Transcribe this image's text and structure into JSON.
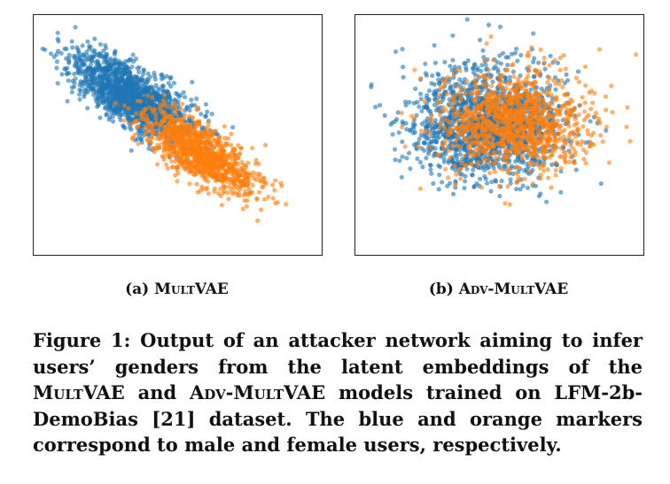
{
  "figure": {
    "subcaptions": [
      {
        "label": "(a)",
        "model": "MultVAE"
      },
      {
        "label": "(b)",
        "model": "Adv-MultVAE"
      }
    ],
    "caption": {
      "prefix": "Figure 1: Output of an attacker network aiming to infer users’ genders from the latent embeddings of the",
      "model_a": "MultVAE",
      "and": "and",
      "model_b": "Adv-MultVAE",
      "suffix": "models trained on LFM-2b-DemoBias [21] dataset. The blue and orange markers correspond to male and female users, respectively."
    }
  },
  "chart_data": [
    {
      "type": "scatter",
      "title": "(a) MultVAE",
      "xlabel": "",
      "ylabel": "",
      "axes_ticks": false,
      "xlim": [
        -4,
        4
      ],
      "ylim": [
        -4,
        4
      ],
      "series": [
        {
          "name": "male",
          "color": "#1f77b4",
          "n": 1500,
          "center": [
            -1.3,
            1.3
          ],
          "axis_angle_deg": -40,
          "sd_major": 1.05,
          "sd_minor": 0.42
        },
        {
          "name": "female",
          "color": "#ff7f0e",
          "n": 1100,
          "center": [
            0.6,
            -0.6
          ],
          "axis_angle_deg": -40,
          "sd_major": 0.95,
          "sd_minor": 0.38
        }
      ]
    },
    {
      "type": "scatter",
      "title": "(b) Adv-MultVAE",
      "xlabel": "",
      "ylabel": "",
      "axes_ticks": false,
      "xlim": [
        -4,
        4
      ],
      "ylim": [
        -4,
        4
      ],
      "series": [
        {
          "name": "male",
          "color": "#1f77b4",
          "n": 1500,
          "center": [
            -0.4,
            0.35
          ],
          "axis_angle_deg": 0,
          "sd_major": 1.1,
          "sd_minor": 0.95
        },
        {
          "name": "female",
          "color": "#ff7f0e",
          "n": 1100,
          "center": [
            0.35,
            0.45
          ],
          "axis_angle_deg": 0,
          "sd_major": 1.05,
          "sd_minor": 0.8
        }
      ]
    }
  ]
}
